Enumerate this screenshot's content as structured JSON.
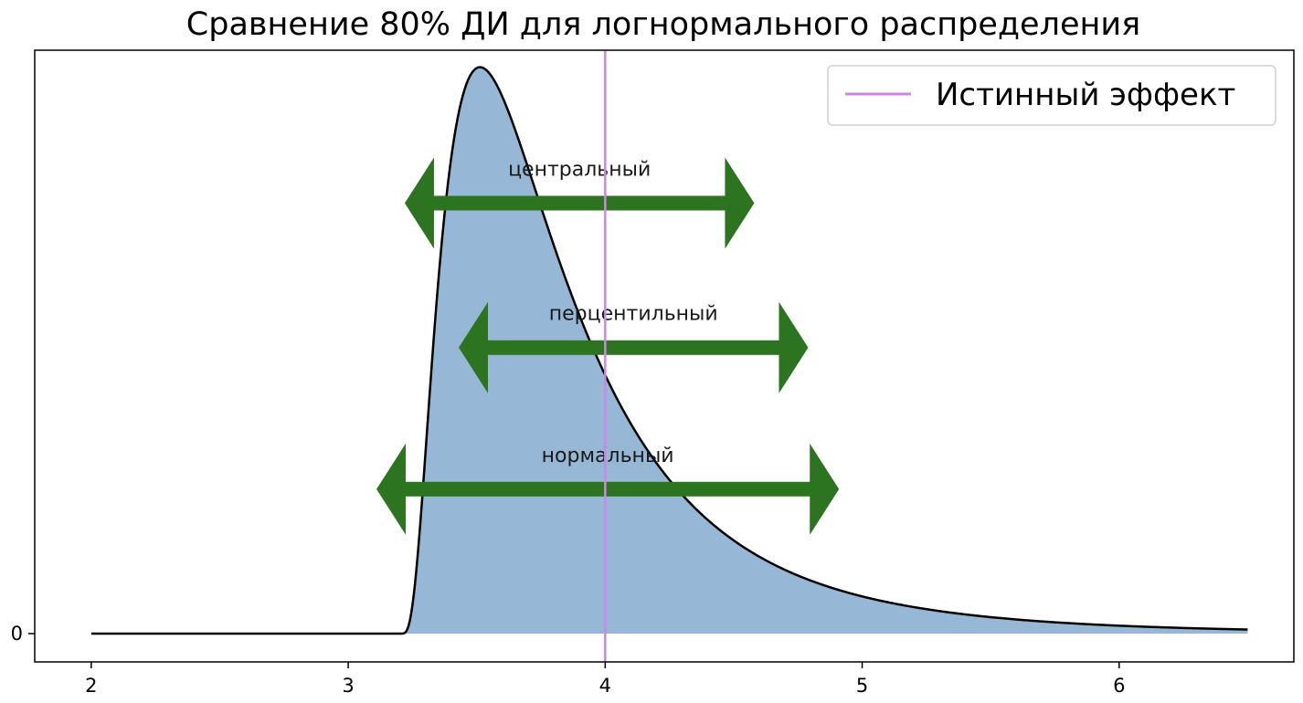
{
  "chart_data": {
    "type": "area",
    "title": "Сравнение 80% ДИ для логнормального распределения",
    "xlabel": "",
    "ylabel": "",
    "xlim": [
      1.78,
      6.68
    ],
    "ylim": [
      -0.05,
      1.03
    ],
    "x_ticks": [
      2,
      3,
      4,
      5,
      6
    ],
    "x_tick_labels": [
      "2",
      "3",
      "4",
      "5",
      "6"
    ],
    "y_ticks": [
      0
    ],
    "y_tick_labels": [
      "0"
    ],
    "grid": false,
    "legend": {
      "position": "top-right",
      "entries": [
        {
          "label": "Истинный эффект",
          "color": "#cc88e0"
        }
      ]
    },
    "density": {
      "shift": 3.2,
      "mu": -0.6,
      "sigma": 0.75,
      "x_range": [
        2.0,
        6.5
      ],
      "fill_color": "#96b8d6",
      "line_color": "#000000"
    },
    "true_effect": {
      "x": 4.0,
      "color": "#cc88e0"
    },
    "intervals": [
      {
        "label": "центральный",
        "low": 3.22,
        "high": 4.58,
        "level": 0.76,
        "color": "#2d7420"
      },
      {
        "label": "перцентильный",
        "low": 3.43,
        "high": 4.79,
        "level": 0.505,
        "color": "#2d7420"
      },
      {
        "label": "нормальный",
        "low": 3.11,
        "high": 4.91,
        "level": 0.255,
        "color": "#2d7420"
      }
    ]
  }
}
